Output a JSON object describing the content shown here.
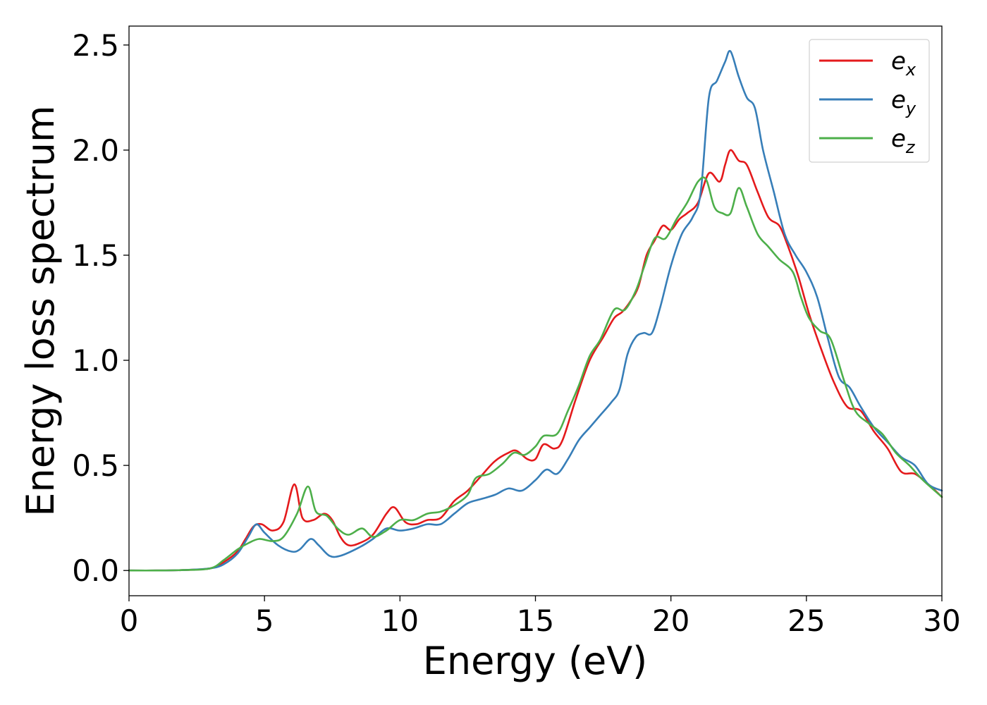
{
  "chart_data": {
    "type": "line",
    "xlabel": "Energy (eV)",
    "ylabel": "Energy loss spectrum",
    "xlim": [
      0,
      30
    ],
    "ylim": [
      -0.12,
      2.59
    ],
    "xticks": [
      "0",
      "5",
      "10",
      "15",
      "20",
      "25",
      "30"
    ],
    "yticks": [
      "0.0",
      "0.5",
      "1.0",
      "1.5",
      "2.0",
      "2.5"
    ],
    "grid": false,
    "legend_position": "top-right",
    "series": [
      {
        "name": "e",
        "subscript": "x",
        "color": "#e41a1c",
        "points": [
          [
            0,
            0
          ],
          [
            1,
            0
          ],
          [
            2,
            0.002
          ],
          [
            3,
            0.01
          ],
          [
            3.5,
            0.04
          ],
          [
            4,
            0.09
          ],
          [
            4.3,
            0.15
          ],
          [
            4.6,
            0.21
          ],
          [
            4.9,
            0.22
          ],
          [
            5.3,
            0.19
          ],
          [
            5.7,
            0.23
          ],
          [
            6.1,
            0.41
          ],
          [
            6.4,
            0.25
          ],
          [
            6.8,
            0.24
          ],
          [
            7.2,
            0.27
          ],
          [
            7.5,
            0.24
          ],
          [
            7.8,
            0.16
          ],
          [
            8.1,
            0.12
          ],
          [
            8.5,
            0.13
          ],
          [
            9,
            0.17
          ],
          [
            9.5,
            0.27
          ],
          [
            9.8,
            0.3
          ],
          [
            10.2,
            0.23
          ],
          [
            10.6,
            0.22
          ],
          [
            11,
            0.24
          ],
          [
            11.5,
            0.25
          ],
          [
            12,
            0.33
          ],
          [
            12.5,
            0.38
          ],
          [
            13,
            0.45
          ],
          [
            13.5,
            0.52
          ],
          [
            14,
            0.56
          ],
          [
            14.3,
            0.57
          ],
          [
            14.7,
            0.53
          ],
          [
            15,
            0.53
          ],
          [
            15.3,
            0.6
          ],
          [
            15.7,
            0.58
          ],
          [
            16,
            0.62
          ],
          [
            16.5,
            0.82
          ],
          [
            17,
            1
          ],
          [
            17.5,
            1.11
          ],
          [
            17.9,
            1.2
          ],
          [
            18.2,
            1.23
          ],
          [
            18.5,
            1.28
          ],
          [
            18.8,
            1.35
          ],
          [
            19.1,
            1.5
          ],
          [
            19.4,
            1.57
          ],
          [
            19.7,
            1.64
          ],
          [
            20,
            1.62
          ],
          [
            20.3,
            1.67
          ],
          [
            20.6,
            1.7
          ],
          [
            21,
            1.75
          ],
          [
            21.4,
            1.89
          ],
          [
            21.8,
            1.85
          ],
          [
            22,
            1.93
          ],
          [
            22.2,
            2
          ],
          [
            22.5,
            1.95
          ],
          [
            22.8,
            1.93
          ],
          [
            23.2,
            1.8
          ],
          [
            23.6,
            1.68
          ],
          [
            24,
            1.64
          ],
          [
            24.3,
            1.55
          ],
          [
            24.7,
            1.4
          ],
          [
            25.1,
            1.22
          ],
          [
            25.5,
            1.07
          ],
          [
            26,
            0.9
          ],
          [
            26.5,
            0.78
          ],
          [
            27,
            0.76
          ],
          [
            27.5,
            0.66
          ],
          [
            28,
            0.58
          ],
          [
            28.5,
            0.47
          ],
          [
            29,
            0.46
          ],
          [
            29.5,
            0.41
          ],
          [
            30,
            0.35
          ]
        ]
      },
      {
        "name": "e",
        "subscript": "y",
        "color": "#377eb8",
        "points": [
          [
            0,
            0
          ],
          [
            1,
            0
          ],
          [
            2,
            0.002
          ],
          [
            3,
            0.01
          ],
          [
            3.5,
            0.03
          ],
          [
            4,
            0.08
          ],
          [
            4.4,
            0.16
          ],
          [
            4.7,
            0.22
          ],
          [
            5,
            0.18
          ],
          [
            5.5,
            0.12
          ],
          [
            6,
            0.09
          ],
          [
            6.3,
            0.1
          ],
          [
            6.7,
            0.15
          ],
          [
            7,
            0.12
          ],
          [
            7.4,
            0.07
          ],
          [
            7.8,
            0.07
          ],
          [
            8.5,
            0.11
          ],
          [
            9,
            0.15
          ],
          [
            9.5,
            0.2
          ],
          [
            10,
            0.19
          ],
          [
            10.5,
            0.2
          ],
          [
            11,
            0.22
          ],
          [
            11.5,
            0.22
          ],
          [
            12,
            0.27
          ],
          [
            12.5,
            0.32
          ],
          [
            13,
            0.34
          ],
          [
            13.5,
            0.36
          ],
          [
            14,
            0.39
          ],
          [
            14.5,
            0.38
          ],
          [
            15,
            0.43
          ],
          [
            15.4,
            0.48
          ],
          [
            15.8,
            0.46
          ],
          [
            16.2,
            0.53
          ],
          [
            16.6,
            0.62
          ],
          [
            17,
            0.68
          ],
          [
            17.4,
            0.74
          ],
          [
            17.8,
            0.8
          ],
          [
            18.1,
            0.86
          ],
          [
            18.4,
            1.03
          ],
          [
            18.7,
            1.11
          ],
          [
            19,
            1.13
          ],
          [
            19.3,
            1.13
          ],
          [
            19.6,
            1.25
          ],
          [
            20,
            1.45
          ],
          [
            20.4,
            1.6
          ],
          [
            20.8,
            1.68
          ],
          [
            21.1,
            1.8
          ],
          [
            21.4,
            2.25
          ],
          [
            21.7,
            2.33
          ],
          [
            22,
            2.42
          ],
          [
            22.2,
            2.47
          ],
          [
            22.5,
            2.35
          ],
          [
            22.8,
            2.25
          ],
          [
            23.1,
            2.2
          ],
          [
            23.4,
            2
          ],
          [
            23.8,
            1.8
          ],
          [
            24.2,
            1.6
          ],
          [
            24.6,
            1.5
          ],
          [
            25,
            1.42
          ],
          [
            25.4,
            1.3
          ],
          [
            25.8,
            1.1
          ],
          [
            26.2,
            0.92
          ],
          [
            26.6,
            0.87
          ],
          [
            27,
            0.78
          ],
          [
            27.5,
            0.68
          ],
          [
            28,
            0.61
          ],
          [
            28.5,
            0.54
          ],
          [
            29,
            0.5
          ],
          [
            29.5,
            0.41
          ],
          [
            30,
            0.38
          ]
        ]
      },
      {
        "name": "e",
        "subscript": "z",
        "color": "#4daf4a",
        "points": [
          [
            0,
            0
          ],
          [
            1,
            0
          ],
          [
            2,
            0.002
          ],
          [
            3,
            0.01
          ],
          [
            3.5,
            0.05
          ],
          [
            4,
            0.1
          ],
          [
            4.4,
            0.13
          ],
          [
            4.8,
            0.15
          ],
          [
            5.3,
            0.14
          ],
          [
            5.7,
            0.16
          ],
          [
            6.2,
            0.27
          ],
          [
            6.6,
            0.4
          ],
          [
            6.9,
            0.28
          ],
          [
            7.3,
            0.26
          ],
          [
            7.7,
            0.2
          ],
          [
            8.1,
            0.17
          ],
          [
            8.6,
            0.2
          ],
          [
            9,
            0.16
          ],
          [
            9.5,
            0.19
          ],
          [
            10,
            0.24
          ],
          [
            10.5,
            0.24
          ],
          [
            11,
            0.27
          ],
          [
            11.5,
            0.28
          ],
          [
            12,
            0.31
          ],
          [
            12.5,
            0.36
          ],
          [
            12.8,
            0.44
          ],
          [
            13.3,
            0.46
          ],
          [
            13.8,
            0.51
          ],
          [
            14.2,
            0.56
          ],
          [
            14.6,
            0.55
          ],
          [
            15,
            0.59
          ],
          [
            15.3,
            0.64
          ],
          [
            15.8,
            0.65
          ],
          [
            16.2,
            0.76
          ],
          [
            16.6,
            0.88
          ],
          [
            17,
            1.02
          ],
          [
            17.4,
            1.1
          ],
          [
            17.9,
            1.24
          ],
          [
            18.3,
            1.24
          ],
          [
            18.7,
            1.33
          ],
          [
            19,
            1.44
          ],
          [
            19.4,
            1.58
          ],
          [
            19.8,
            1.58
          ],
          [
            20.2,
            1.67
          ],
          [
            20.6,
            1.75
          ],
          [
            21,
            1.85
          ],
          [
            21.3,
            1.86
          ],
          [
            21.6,
            1.73
          ],
          [
            21.9,
            1.7
          ],
          [
            22.2,
            1.7
          ],
          [
            22.5,
            1.82
          ],
          [
            22.8,
            1.73
          ],
          [
            23.2,
            1.6
          ],
          [
            23.6,
            1.54
          ],
          [
            24,
            1.48
          ],
          [
            24.5,
            1.42
          ],
          [
            24.8,
            1.3
          ],
          [
            25.1,
            1.2
          ],
          [
            25.5,
            1.14
          ],
          [
            25.9,
            1.1
          ],
          [
            26.4,
            0.9
          ],
          [
            26.8,
            0.76
          ],
          [
            27.3,
            0.7
          ],
          [
            27.8,
            0.65
          ],
          [
            28.3,
            0.56
          ],
          [
            28.8,
            0.5
          ],
          [
            29.3,
            0.43
          ],
          [
            30,
            0.35
          ]
        ]
      }
    ]
  }
}
